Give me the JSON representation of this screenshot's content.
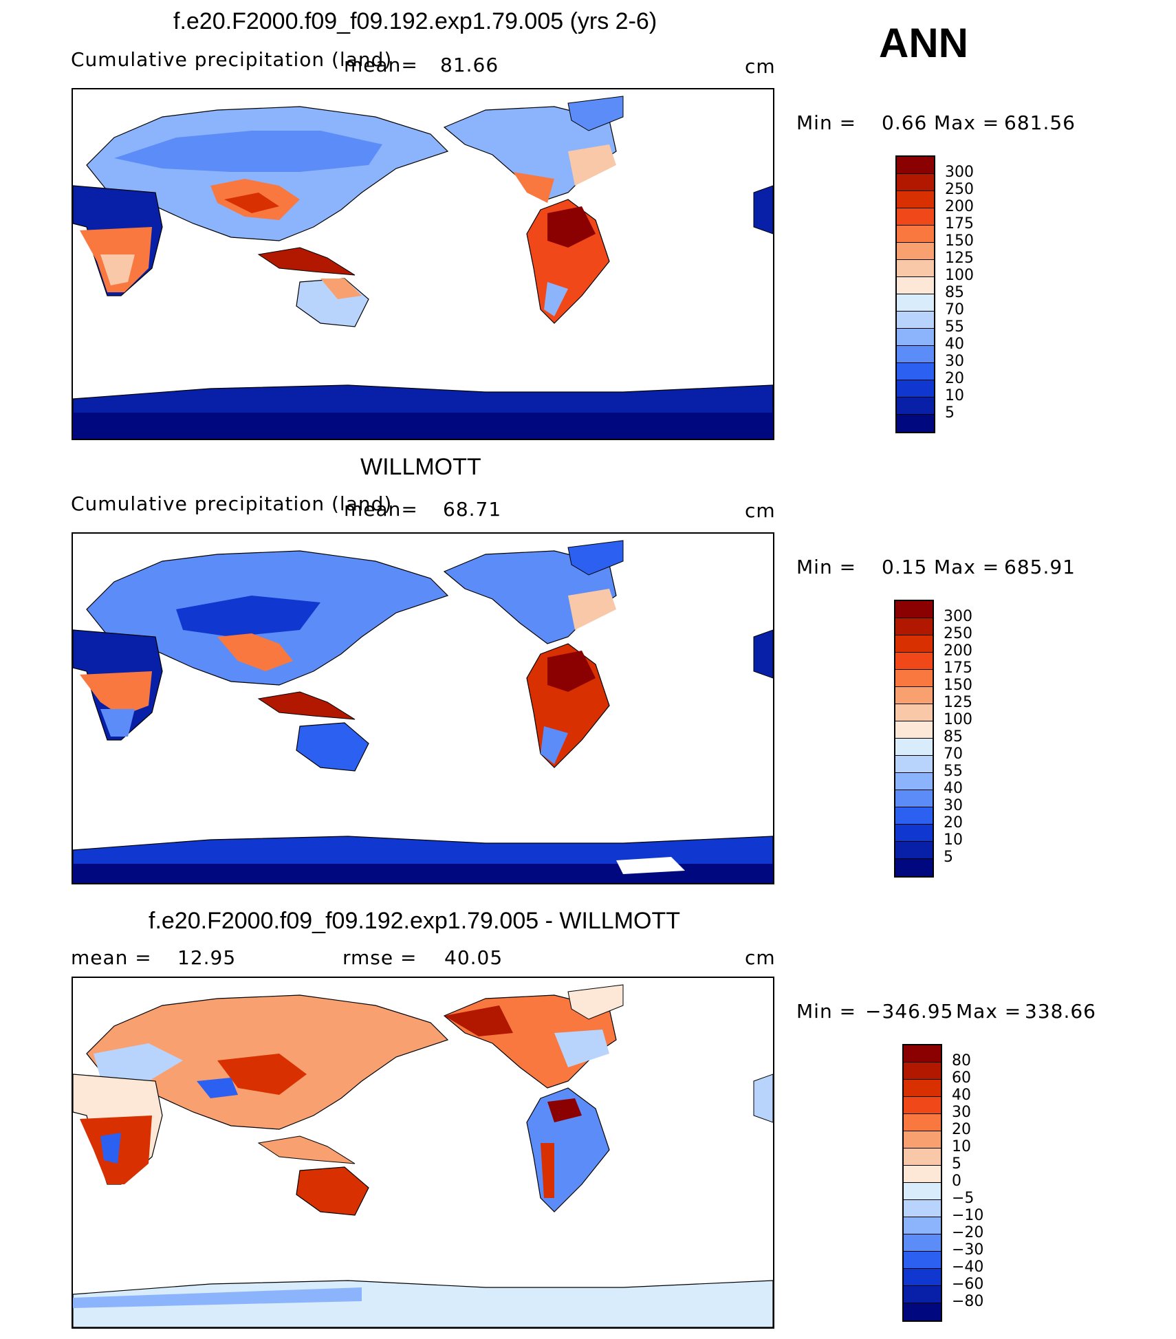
{
  "season": "ANN",
  "panels": [
    {
      "id": "model",
      "title": "f.e20.F2000.f09_f09.192.exp1.79.005 (yrs 2-6)",
      "variable": "Cumulative precipitation (land)",
      "mean_label": "mean=",
      "mean_value": "81.66",
      "units": "cm",
      "min_label": "Min =",
      "min_value": "0.66",
      "max_label": "Max =",
      "max_value": "681.56"
    },
    {
      "id": "obs",
      "title": "WILLMOTT",
      "variable": "Cumulative precipitation (land)",
      "mean_label": "mean=",
      "mean_value": "68.71",
      "units": "cm",
      "min_label": "Min =",
      "min_value": "0.15",
      "max_label": "Max =",
      "max_value": "685.91"
    },
    {
      "id": "diff",
      "title": "f.e20.F2000.f09_f09.192.exp1.79.005 - WILLMOTT",
      "mean_label": "mean =",
      "mean_value": "12.95",
      "rmse_label": "rmse =",
      "rmse_value": "40.05",
      "units": "cm",
      "min_label": "Min =",
      "min_value": "−346.95",
      "max_label": "Max =",
      "max_value": "338.66"
    }
  ],
  "colorbars": {
    "precip": {
      "labels": [
        "300",
        "250",
        "200",
        "175",
        "150",
        "125",
        "100",
        "85",
        "70",
        "55",
        "40",
        "30",
        "20",
        "10",
        "5"
      ],
      "colors": [
        "#8b0000",
        "#b21800",
        "#d83000",
        "#f04818",
        "#f87840",
        "#f8a070",
        "#f8c8a8",
        "#fde8d8",
        "#d8ecfc",
        "#b8d4fc",
        "#8cb4fc",
        "#5c8cf8",
        "#2c60f0",
        "#1038d0",
        "#0820a8",
        "#000880"
      ]
    },
    "diff": {
      "labels": [
        "80",
        "60",
        "40",
        "30",
        "20",
        "10",
        "5",
        "0",
        "−5",
        "−10",
        "−20",
        "−30",
        "−40",
        "−60",
        "−80"
      ],
      "colors": [
        "#8b0000",
        "#b21800",
        "#d83000",
        "#f04818",
        "#f87840",
        "#f8a070",
        "#f8c8a8",
        "#fde8d8",
        "#d8ecfc",
        "#b8d4fc",
        "#8cb4fc",
        "#5c8cf8",
        "#2c60f0",
        "#1038d0",
        "#0820a8",
        "#000880"
      ]
    }
  }
}
